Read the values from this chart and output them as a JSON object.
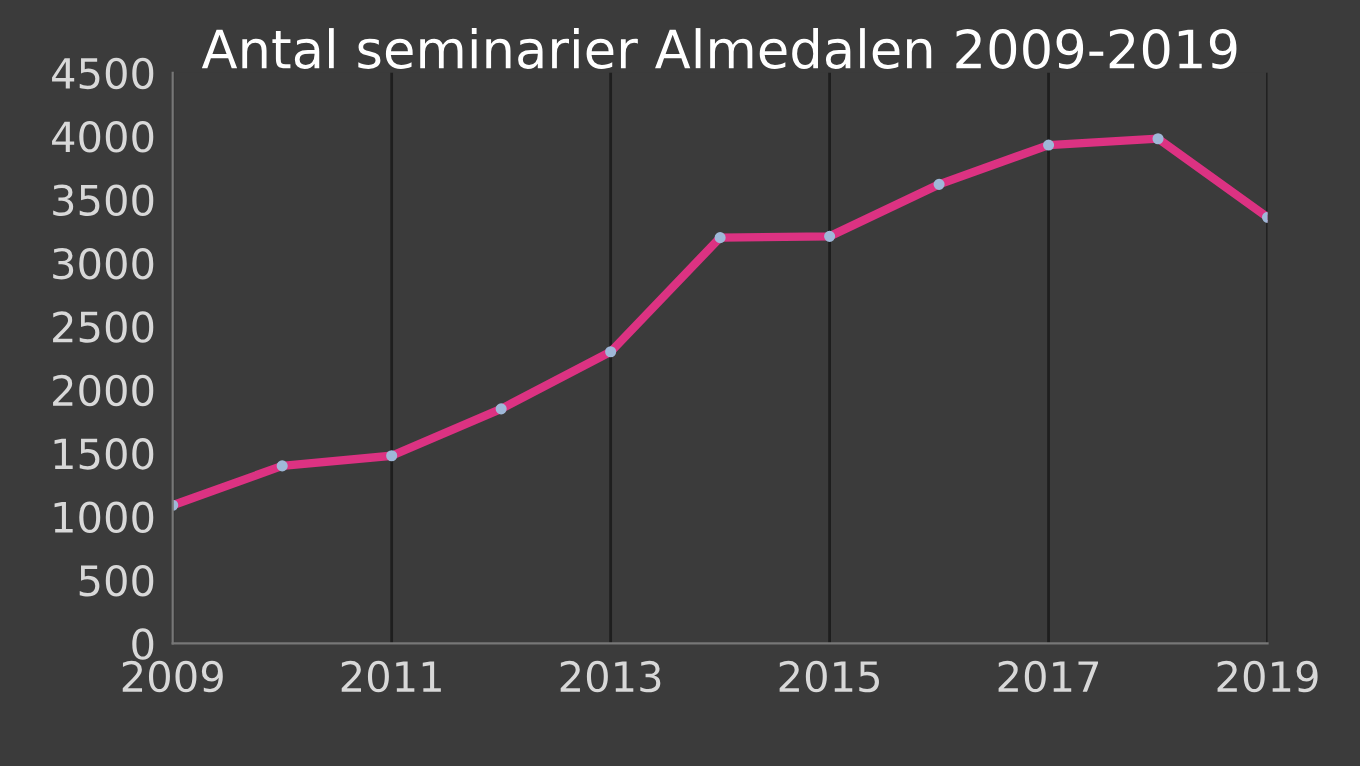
{
  "chart_data": {
    "type": "line",
    "title": "Antal seminarier Almedalen 2009-2019",
    "x": [
      2009,
      2010,
      2011,
      2012,
      2013,
      2014,
      2015,
      2016,
      2017,
      2018,
      2019
    ],
    "series": [
      {
        "color": "#dc3282",
        "values": [
          1090,
          1400,
          1480,
          1850,
          2300,
          3200,
          3210,
          3620,
          3930,
          3980,
          3360
        ]
      }
    ],
    "xlim": [
      2009,
      2019
    ],
    "xticks": [
      2009,
      2011,
      2013,
      2015,
      2017,
      2019
    ],
    "ylim": [
      0,
      4500
    ],
    "yticks": [
      0,
      500,
      1000,
      1500,
      2000,
      2500,
      3000,
      3500,
      4000,
      4500
    ],
    "grid": "x",
    "marker": "circle",
    "line_style": "solid",
    "legend": false
  }
}
